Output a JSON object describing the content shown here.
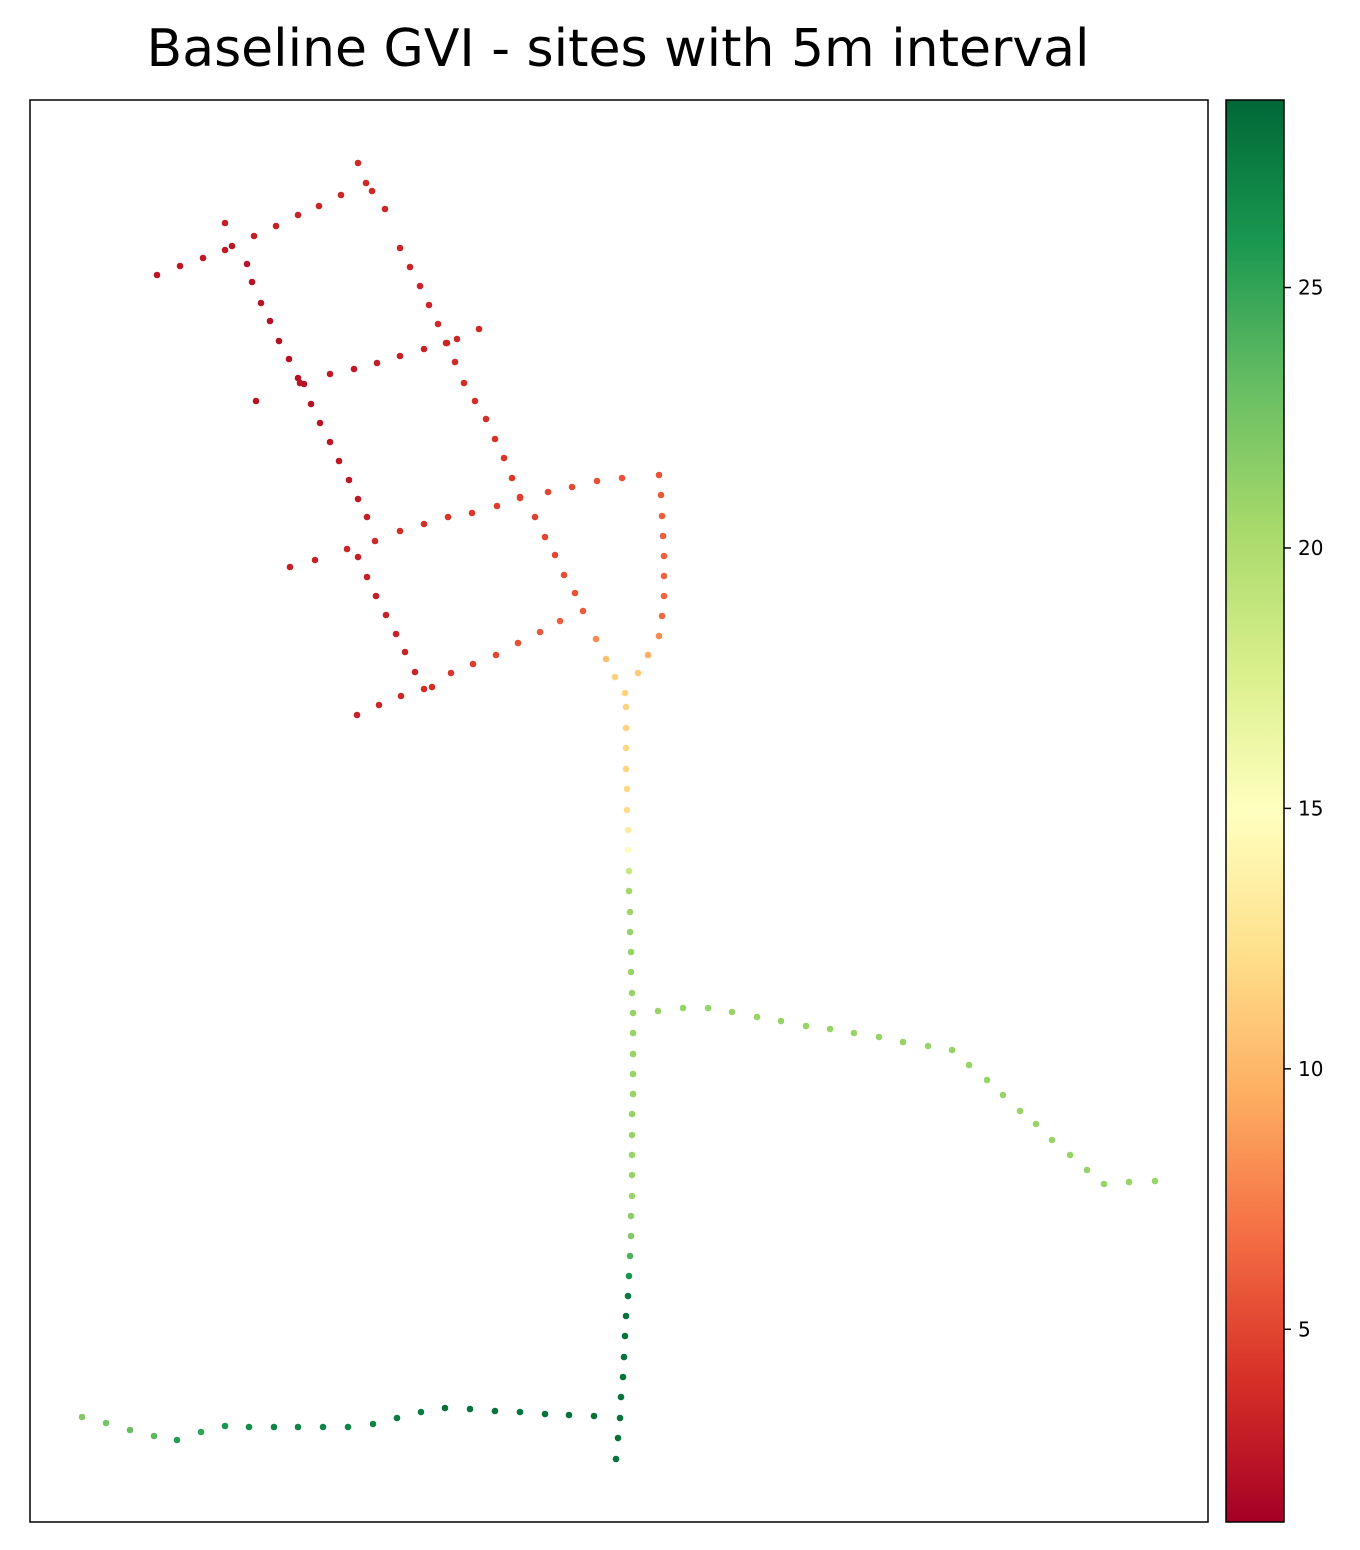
{
  "chart_data": {
    "type": "scatter",
    "title": "Baseline GVI - sites with 5m interval",
    "xlim": [
      30,
      1208
    ],
    "ylim": [
      1522,
      100
    ],
    "clim": [
      1.3,
      28.6
    ],
    "colorbar_ticks": [
      5,
      10,
      15,
      20,
      25
    ],
    "cmap": [
      "#a50026",
      "#d73027",
      "#f46d43",
      "#fdae61",
      "#fee08b",
      "#ffffbf",
      "#d9ef8b",
      "#a6d96a",
      "#66bd63",
      "#1a9850",
      "#006837"
    ],
    "x": [
      157,
      180,
      203,
      225,
      254,
      276,
      298,
      319,
      341,
      358,
      366,
      372,
      385,
      400,
      410,
      420,
      429,
      438,
      446,
      455,
      464,
      475,
      486,
      495,
      504,
      512,
      520,
      535,
      545,
      555,
      564,
      575,
      583,
      596,
      606,
      615,
      225,
      232,
      247,
      252,
      261,
      270,
      279,
      289,
      298,
      304,
      311,
      320,
      330,
      339,
      349,
      358,
      367,
      358,
      367,
      376,
      386,
      396,
      405,
      415,
      256,
      300,
      330,
      354,
      377,
      400,
      424,
      447,
      457,
      479,
      290,
      315,
      347,
      375,
      400,
      424,
      448,
      472,
      497,
      520,
      548,
      572,
      597,
      622,
      659,
      661,
      662,
      663,
      664,
      664,
      664,
      662,
      659,
      648,
      638,
      357,
      379,
      401,
      424,
      432,
      451,
      473,
      496,
      518,
      540,
      560,
      625,
      626,
      626,
      626,
      626,
      627,
      627,
      628,
      628,
      629,
      629,
      630,
      630,
      631,
      631,
      632,
      633,
      633,
      633,
      633,
      633,
      632,
      632,
      632,
      632,
      632,
      631,
      631,
      630,
      629,
      628,
      626,
      625,
      624,
      623,
      621,
      620,
      618,
      616,
      658,
      683,
      708,
      732,
      757,
      781,
      806,
      830,
      854,
      879,
      903,
      928,
      952,
      969,
      987,
      1003,
      1020,
      1036,
      1052,
      1070,
      1087,
      1104,
      1129,
      1155,
      82,
      106,
      130,
      154,
      177,
      201,
      225,
      249,
      274,
      298,
      323,
      348,
      373,
      397,
      421,
      445,
      470,
      495,
      520,
      545,
      569,
      594
    ],
    "y": [
      275,
      266,
      258,
      250,
      236,
      226,
      215,
      206,
      195,
      163,
      183,
      191,
      209,
      248,
      267,
      286,
      305,
      324,
      343,
      362,
      383,
      401,
      419,
      439,
      458,
      478,
      497,
      517,
      537,
      555,
      575,
      593,
      611,
      639,
      659,
      677,
      223,
      246,
      264,
      282,
      303,
      321,
      341,
      359,
      378,
      384,
      404,
      423,
      442,
      461,
      480,
      499,
      517,
      557,
      577,
      596,
      615,
      634,
      652,
      672,
      401,
      383,
      374,
      369,
      363,
      356,
      349,
      343,
      339,
      329,
      567,
      560,
      549,
      541,
      531,
      524,
      517,
      513,
      506,
      498,
      492,
      487,
      481,
      478,
      475,
      495,
      516,
      536,
      556,
      576,
      596,
      616,
      636,
      655,
      673,
      715,
      705,
      696,
      689,
      687,
      673,
      664,
      655,
      643,
      632,
      621,
      693,
      707,
      728,
      748,
      769,
      789,
      810,
      830,
      850,
      871,
      891,
      912,
      932,
      952,
      972,
      993,
      1013,
      1033,
      1054,
      1074,
      1094,
      1114,
      1135,
      1155,
      1175,
      1196,
      1216,
      1236,
      1256,
      1276,
      1296,
      1316,
      1336,
      1357,
      1377,
      1397,
      1418,
      1438,
      1459,
      1011,
      1008,
      1008,
      1012,
      1017,
      1021,
      1026,
      1029,
      1033,
      1037,
      1042,
      1046,
      1050,
      1065,
      1080,
      1095,
      1111,
      1124,
      1140,
      1155,
      1170,
      1184,
      1182,
      1181,
      1417,
      1423,
      1430,
      1436,
      1440,
      1432,
      1426,
      1427,
      1427,
      1427,
      1427,
      1427,
      1424,
      1418,
      1412,
      1408,
      1409,
      1411,
      1412,
      1414,
      1415,
      1416
    ],
    "values": [
      2.5,
      2.6,
      2.7,
      2.8,
      3,
      3.1,
      3.3,
      3.4,
      3.5,
      3.6,
      3.6,
      3.6,
      3.5,
      3.4,
      3.3,
      3.3,
      3.4,
      3.5,
      3.6,
      3.7,
      3.8,
      3.9,
      4,
      4.1,
      4.2,
      4.4,
      4.6,
      4.8,
      5,
      5.2,
      5.4,
      5.6,
      6,
      8,
      10.5,
      11.5,
      3,
      2.6,
      2.4,
      2.3,
      2.3,
      2.2,
      2.2,
      2.2,
      2.2,
      2.3,
      2.3,
      2.4,
      2.5,
      2.6,
      2.7,
      2.8,
      3,
      3,
      3,
      3.1,
      3.2,
      3.3,
      3.3,
      3.4,
      2.4,
      2.5,
      2.7,
      2.8,
      3,
      3.1,
      3.3,
      3.4,
      3.5,
      3.6,
      3,
      3.2,
      3.4,
      3.6,
      3.8,
      4,
      4.2,
      4.4,
      4.6,
      4.8,
      5,
      5.2,
      5.4,
      5.6,
      5.6,
      5.8,
      6,
      6.1,
      6.2,
      6.3,
      6.4,
      6.6,
      8,
      9.5,
      11,
      3.2,
      3.4,
      3.6,
      3.8,
      3.8,
      4.2,
      4.6,
      5,
      5.4,
      5.8,
      6.2,
      11.5,
      11.5,
      11.5,
      11.6,
      11.7,
      11.8,
      12,
      13.3,
      14.7,
      18.5,
      20.5,
      20.8,
      21,
      21,
      21,
      21,
      21,
      21,
      21,
      21,
      21,
      21,
      21,
      21,
      21,
      21,
      21.5,
      22,
      24,
      26,
      27.5,
      28,
      28,
      28,
      28,
      28,
      28,
      28,
      28,
      21,
      21,
      21,
      21,
      21,
      21,
      21,
      21,
      21,
      21,
      21,
      21,
      21,
      21,
      21,
      21,
      21,
      21,
      21,
      21,
      21,
      21,
      21,
      21,
      22,
      22.5,
      23,
      23.5,
      25.5,
      25,
      26,
      26.5,
      27,
      27,
      27,
      27,
      27,
      27.5,
      27.5,
      28,
      28,
      28,
      28,
      28,
      28,
      28
    ]
  }
}
